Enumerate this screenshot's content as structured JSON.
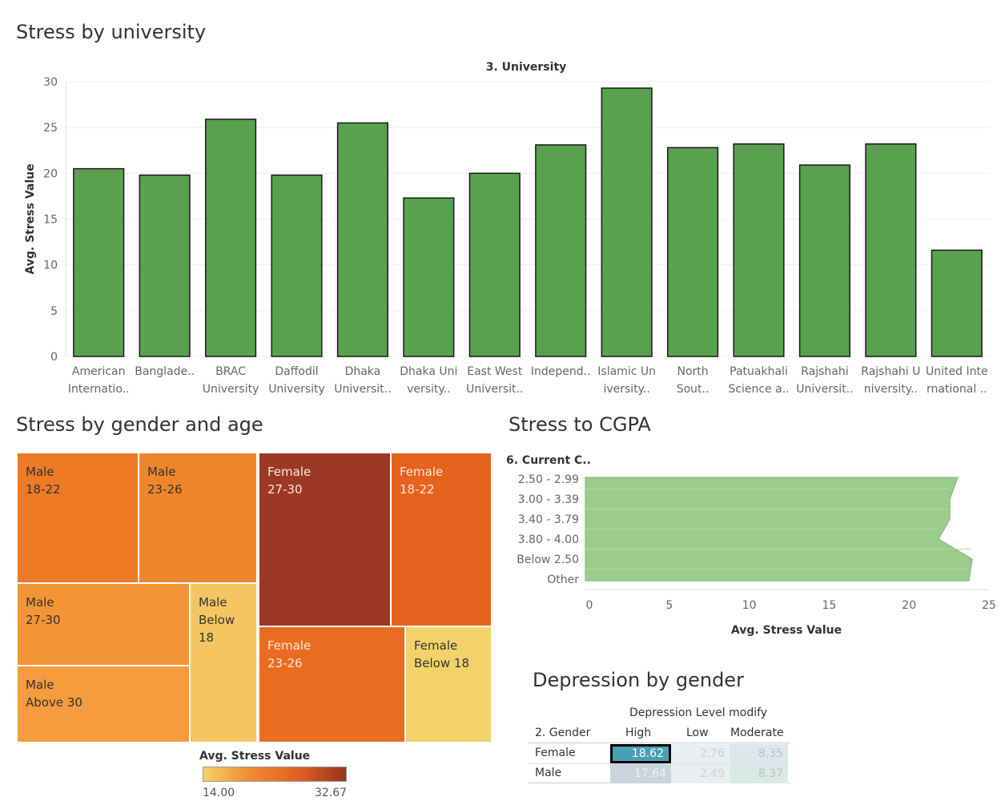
{
  "sections": {
    "university_title": "Stress by university",
    "gender_age_title": "Stress by gender and age",
    "cgpa_title": "Stress to CGPA",
    "depression_title": "Depression by gender"
  },
  "colors": {
    "bar_green": "#59a14f",
    "area_green": "#9ccb8e",
    "high_accent": "#4a9fb5"
  },
  "chart_data": [
    {
      "type": "bar",
      "title": "3. University",
      "ylabel": "Avg. Stress Value",
      "ylim": [
        0,
        30
      ],
      "yticks": [
        0,
        5,
        10,
        15,
        20,
        25,
        30
      ],
      "categories": [
        [
          "American",
          "Internatio.."
        ],
        [
          "Banglade..",
          ""
        ],
        [
          "BRAC",
          "University"
        ],
        [
          "Daffodil",
          "University"
        ],
        [
          "Dhaka",
          "Universit.."
        ],
        [
          "Dhaka Uni",
          "versity.."
        ],
        [
          "East West",
          "Universit.."
        ],
        [
          "Independ..",
          ""
        ],
        [
          "Islamic Un",
          "iversity.."
        ],
        [
          "North",
          "Sout.."
        ],
        [
          "Patuakhali",
          "Science a.."
        ],
        [
          "Rajshahi",
          "Universit.."
        ],
        [
          "Rajshahi U",
          "niversity.."
        ],
        [
          "United Inte",
          "rnational .."
        ]
      ],
      "values": [
        20.5,
        19.8,
        25.9,
        19.8,
        25.5,
        17.3,
        20.0,
        23.1,
        29.3,
        22.8,
        23.2,
        20.9,
        23.2,
        11.6
      ]
    },
    {
      "type": "treemap",
      "legend_title": "Avg. Stress Value",
      "legend_min": "14.00",
      "legend_max": "32.67",
      "tiles": [
        {
          "gender": "Male",
          "age": "18-22",
          "color": "#ee7a26"
        },
        {
          "gender": "Male",
          "age": "23-26",
          "color": "#f0862b"
        },
        {
          "gender": "Female",
          "age": "27-30",
          "color": "#9e3826"
        },
        {
          "gender": "Female",
          "age": "18-22",
          "color": "#e5621f"
        },
        {
          "gender": "Male",
          "age": "27-30",
          "color": "#f39537"
        },
        {
          "gender": "Male",
          "age": "Below 18",
          "color": "#f4c661"
        },
        {
          "gender": "Male",
          "age": "Above 30",
          "color": "#f49c3e"
        },
        {
          "gender": "Female",
          "age": "23-26",
          "color": "#ea6c21"
        },
        {
          "gender": "Female",
          "age": "Below 18",
          "color": "#f3d26c"
        }
      ]
    },
    {
      "type": "area",
      "ylabel": "6. Current C..",
      "xlabel": "Avg. Stress Value",
      "xlim": [
        0,
        25
      ],
      "xticks": [
        0,
        5,
        10,
        15,
        20,
        25
      ],
      "categories": [
        "2.50 - 2.99",
        "3.00 - 3.39",
        "3.40 - 3.79",
        "3.80 - 4.00",
        "Below 2.50",
        "Other"
      ],
      "values": [
        23.3,
        22.8,
        22.8,
        22.1,
        24.2,
        24.0
      ]
    },
    {
      "type": "table",
      "column_group": "Depression Level modify",
      "row_header": "2. Gender",
      "columns": [
        "High",
        "Low",
        "Moderate"
      ],
      "rows": [
        {
          "label": "Female",
          "values": [
            "18.62",
            "2.76",
            "8.35"
          ]
        },
        {
          "label": "Male",
          "values": [
            "17.64",
            "2.49",
            "8.37"
          ]
        }
      ]
    }
  ]
}
